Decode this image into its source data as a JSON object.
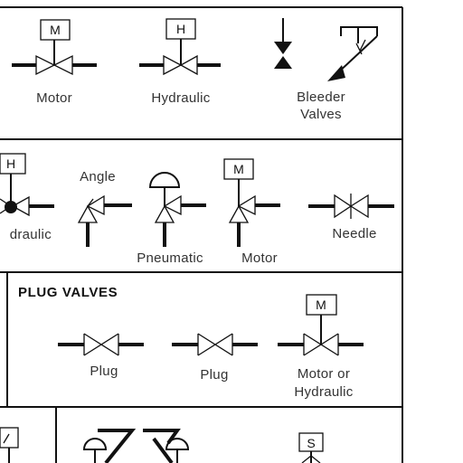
{
  "sections": {
    "motor_row": {
      "labels": {
        "motor": "Motor",
        "hydraulic": "Hydraulic",
        "bleeder_line1": "Bleeder",
        "bleeder_line2": "Valves"
      },
      "actuator_letters": {
        "motor": "M",
        "hydraulic": "H"
      }
    },
    "globe_row": {
      "labels": {
        "hydraulic_partial": "draulic",
        "angle": "Angle",
        "pneumatic": "Pneumatic",
        "motor": "Motor",
        "needle": "Needle"
      },
      "actuator_letters": {
        "hydraulic": "H",
        "motor": "M"
      }
    },
    "plug_valves": {
      "title": "PLUG VALVES",
      "labels": {
        "plug1": "Plug",
        "plug2": "Plug",
        "motor_or_line1": "Motor or",
        "motor_or_line2": "Hydraulic"
      },
      "actuator_letters": {
        "motor": "M"
      }
    },
    "bottom_row": {
      "actuator_letters": {
        "solenoid": "S"
      }
    }
  }
}
